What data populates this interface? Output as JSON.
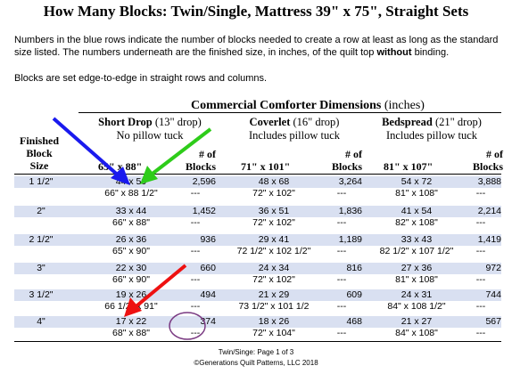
{
  "title": "How Many Blocks: Twin/Single, Mattress 39\" x 75\", Straight Sets",
  "intro": {
    "para1_before": "Numbers in the blue rows indicate the number of blocks needed to create a row at least as long as the standard size listed. The numbers underneath are the finished size, in inches, of the quilt top ",
    "para1_bold": "without",
    "para1_after": " binding.",
    "para2": "Blocks are set edge-to-edge in straight rows and columns."
  },
  "table": {
    "title": "Commercial Comforter Dimensions",
    "title_units": "(inches)",
    "finished_header": [
      "Finished",
      "Block",
      "Size"
    ],
    "groups": [
      {
        "name": "Short Drop",
        "note": "(13\" drop)",
        "sub": "No pillow tuck",
        "size": "65\" x 88\""
      },
      {
        "name": "Coverlet",
        "note": "(16\" drop)",
        "sub": "Includes pillow tuck",
        "size": "71\" x 101\""
      },
      {
        "name": "Bedspread",
        "note": "(21\" drop)",
        "sub": "Includes pillow tuck",
        "size": "81\" x 107\""
      }
    ],
    "blocks_header": [
      "# of",
      "Blocks"
    ],
    "rows": [
      {
        "size": "1 1/2\"",
        "g": [
          {
            "dim": "44 x 59",
            "count": "2,596",
            "fin": "66\" x 88 1/2\"",
            "fin_count": "---"
          },
          {
            "dim": "48 x 68",
            "count": "3,264",
            "fin": "72\" x 102\"",
            "fin_count": "---"
          },
          {
            "dim": "54 x 72",
            "count": "3,888",
            "fin": "81\" x 108\"",
            "fin_count": "---"
          }
        ]
      },
      {
        "size": "2\"",
        "g": [
          {
            "dim": "33 x 44",
            "count": "1,452",
            "fin": "66\" x 88\"",
            "fin_count": "---"
          },
          {
            "dim": "36 x 51",
            "count": "1,836",
            "fin": "72\" x 102\"",
            "fin_count": "---"
          },
          {
            "dim": "41 x 54",
            "count": "2,214",
            "fin": "82\" x 108\"",
            "fin_count": "---"
          }
        ]
      },
      {
        "size": "2 1/2\"",
        "g": [
          {
            "dim": "26 x 36",
            "count": "936",
            "fin": "65\" x 90\"",
            "fin_count": "---"
          },
          {
            "dim": "29 x 41",
            "count": "1,189",
            "fin": "72 1/2\" x 102 1/2\"",
            "fin_count": "---"
          },
          {
            "dim": "33 x 43",
            "count": "1,419",
            "fin": "82 1/2\" x 107 1/2\"",
            "fin_count": "---"
          }
        ]
      },
      {
        "size": "3\"",
        "g": [
          {
            "dim": "22 x 30",
            "count": "660",
            "fin": "66\" x 90\"",
            "fin_count": "---"
          },
          {
            "dim": "24 x 34",
            "count": "816",
            "fin": "72\" x 102\"",
            "fin_count": "---"
          },
          {
            "dim": "27 x 36",
            "count": "972",
            "fin": "81\" x 108\"",
            "fin_count": "---"
          }
        ]
      },
      {
        "size": "3 1/2\"",
        "g": [
          {
            "dim": "19 x 26",
            "count": "494",
            "fin": "66 1/2\" x 91\"",
            "fin_count": "---"
          },
          {
            "dim": "21 x 29",
            "count": "609",
            "fin": "73 1/2\" x 101 1/2",
            "fin_count": "---"
          },
          {
            "dim": "24 x 31",
            "count": "744",
            "fin": "84\" x 108 1/2\"",
            "fin_count": "---"
          }
        ]
      },
      {
        "size": "4\"",
        "g": [
          {
            "dim": "17 x 22",
            "count": "374",
            "fin": "68\" x 88\"",
            "fin_count": "---"
          },
          {
            "dim": "18 x 26",
            "count": "468",
            "fin": "72\" x 104\"",
            "fin_count": "---"
          },
          {
            "dim": "21 x 27",
            "count": "567",
            "fin": "84\" x 108\"",
            "fin_count": "---"
          }
        ]
      }
    ]
  },
  "footer": {
    "line1": "Twin/Singe: Page 1 of 3",
    "line2": "©Generations Quilt Patterns, LLC 2018"
  },
  "annotations": {
    "blue_arrow_color": "#1a1aee",
    "green_arrow_color": "#2ecc1a",
    "red_arrow_color": "#ee1111",
    "circle_color": "#7a3a82"
  }
}
